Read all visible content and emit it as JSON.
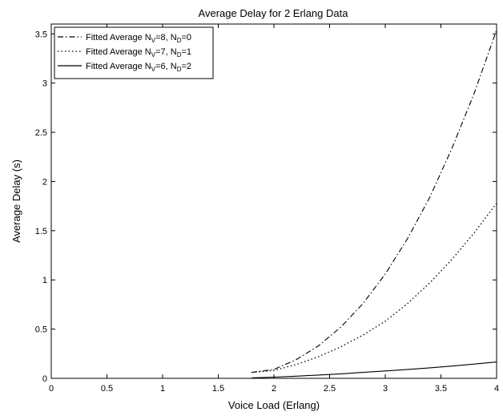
{
  "chart_data": {
    "type": "line",
    "title": "Average Delay for 2 Erlang Data",
    "xlabel": "Voice Load (Erlang)",
    "ylabel": "Average Delay (s)",
    "xlim": [
      0,
      4
    ],
    "ylim": [
      0,
      3.6
    ],
    "grid": false,
    "legend_position": "top-left",
    "xticks": [
      0,
      0.5,
      1,
      1.5,
      2,
      2.5,
      3,
      3.5,
      4
    ],
    "xtick_labels": [
      "0",
      "0.5",
      "1",
      "1.5",
      "2",
      "2.5",
      "3",
      "3.5",
      "4"
    ],
    "yticks": [
      0,
      0.5,
      1,
      1.5,
      2,
      2.5,
      3,
      3.5
    ],
    "ytick_labels": [
      "0",
      "0.5",
      "1",
      "1.5",
      "2",
      "2.5",
      "3",
      "3.5"
    ],
    "series": [
      {
        "legend_prefix": "Fitted Average N",
        "legend_sub1": "V",
        "legend_mid": "=8, N",
        "legend_sub2": "D",
        "legend_suffix": "=0",
        "line_style": "dash-dot",
        "color": "#000000",
        "x": [
          1.8,
          2.0,
          2.2,
          2.4,
          2.6,
          2.8,
          3.0,
          3.2,
          3.4,
          3.6,
          3.8,
          4.0
        ],
        "y": [
          0.06,
          0.09,
          0.19,
          0.33,
          0.52,
          0.76,
          1.06,
          1.42,
          1.84,
          2.34,
          2.9,
          3.54
        ]
      },
      {
        "legend_prefix": "Fitted Average N",
        "legend_sub1": "V",
        "legend_mid": "=7, N",
        "legend_sub2": "D",
        "legend_suffix": "=1",
        "line_style": "dotted",
        "color": "#000000",
        "x": [
          1.8,
          2.0,
          2.2,
          2.4,
          2.6,
          2.8,
          3.0,
          3.2,
          3.4,
          3.6,
          3.8,
          4.0
        ],
        "y": [
          0.06,
          0.08,
          0.14,
          0.22,
          0.32,
          0.44,
          0.58,
          0.76,
          0.97,
          1.21,
          1.48,
          1.78
        ]
      },
      {
        "legend_prefix": "Fitted Average N",
        "legend_sub1": "V",
        "legend_mid": "=6, N",
        "legend_sub2": "D",
        "legend_suffix": "=2",
        "line_style": "solid",
        "color": "#000000",
        "x": [
          1.8,
          2.0,
          2.2,
          2.4,
          2.6,
          2.8,
          3.0,
          3.2,
          3.4,
          3.6,
          3.8,
          4.0
        ],
        "y": [
          0.005,
          0.012,
          0.022,
          0.033,
          0.046,
          0.06,
          0.075,
          0.09,
          0.107,
          0.125,
          0.145,
          0.166
        ]
      }
    ]
  }
}
